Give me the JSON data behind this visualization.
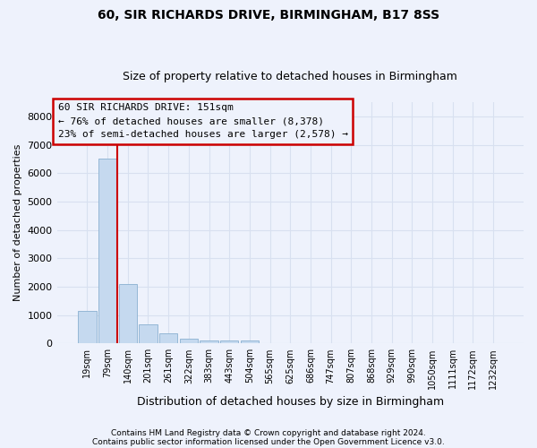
{
  "title": "60, SIR RICHARDS DRIVE, BIRMINGHAM, B17 8SS",
  "subtitle": "Size of property relative to detached houses in Birmingham",
  "xlabel": "Distribution of detached houses by size in Birmingham",
  "ylabel": "Number of detached properties",
  "footnote1": "Contains HM Land Registry data © Crown copyright and database right 2024.",
  "footnote2": "Contains public sector information licensed under the Open Government Licence v3.0.",
  "annotation_title": "60 SIR RICHARDS DRIVE: 151sqm",
  "annotation_line1": "← 76% of detached houses are smaller (8,378)",
  "annotation_line2": "23% of semi-detached houses are larger (2,578) →",
  "bar_labels": [
    "19sqm",
    "79sqm",
    "140sqm",
    "201sqm",
    "261sqm",
    "322sqm",
    "383sqm",
    "443sqm",
    "504sqm",
    "565sqm",
    "625sqm",
    "686sqm",
    "747sqm",
    "807sqm",
    "868sqm",
    "929sqm",
    "990sqm",
    "1050sqm",
    "1111sqm",
    "1172sqm",
    "1232sqm"
  ],
  "bar_values": [
    1150,
    6500,
    2100,
    680,
    370,
    165,
    120,
    90,
    100,
    0,
    0,
    0,
    0,
    0,
    0,
    0,
    0,
    0,
    0,
    0,
    0
  ],
  "bar_color": "#c5d9ef",
  "bar_edge_color": "#8ab0d0",
  "vline_x": 1.5,
  "vline_color": "#cc0000",
  "ylim": [
    0,
    8500
  ],
  "yticks": [
    0,
    1000,
    2000,
    3000,
    4000,
    5000,
    6000,
    7000,
    8000
  ],
  "background_color": "#eef2fc",
  "grid_color": "#d8e0f0",
  "annotation_border_color": "#cc0000",
  "title_fontsize": 10,
  "subtitle_fontsize": 9,
  "ylabel_fontsize": 8,
  "xlabel_fontsize": 9,
  "tick_fontsize": 8,
  "xtick_fontsize": 7
}
